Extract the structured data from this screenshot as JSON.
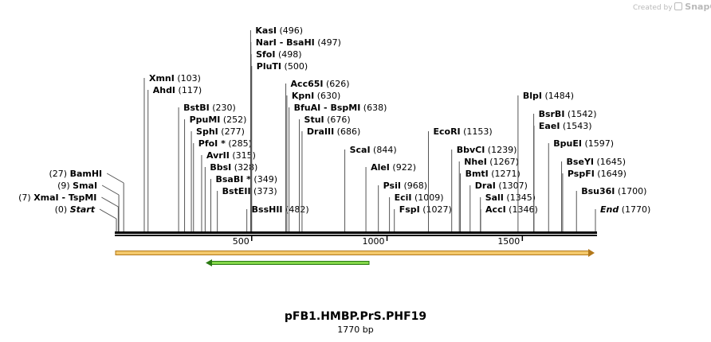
{
  "credit": {
    "prefix": "Created by",
    "brand": "SnapGene"
  },
  "map_title": "pFB1.HMBP.PrS.PHF19",
  "map_length": "1770 bp",
  "colors": {
    "feature_orange": "#f3c86b",
    "feature_orange_edge": "#b3781a",
    "feature_green": "#84d74a",
    "feature_green_edge": "#2a7a12",
    "line": "#000000",
    "leader": "#555555"
  },
  "ticks": [
    {
      "pos": 500,
      "label": "500"
    },
    {
      "pos": 1000,
      "label": "1000"
    },
    {
      "pos": 1500,
      "label": "1500"
    }
  ],
  "sites": [
    {
      "name": "Start",
      "pos": 0,
      "num": "(0)",
      "side": "left",
      "italic": true
    },
    {
      "name": "XmaI  -  TspMI",
      "pos": 7,
      "num": "(7)",
      "side": "left"
    },
    {
      "name": "SmaI",
      "pos": 9,
      "num": "(9)",
      "side": "left"
    },
    {
      "name": "BamHI",
      "pos": 27,
      "num": "(27)",
      "side": "left"
    },
    {
      "name": "XmnI",
      "pos": 103,
      "num": "(103)",
      "side": "right"
    },
    {
      "name": "AhdI",
      "pos": 117,
      "num": "(117)",
      "side": "right"
    },
    {
      "name": "BstBI",
      "pos": 230,
      "num": "(230)",
      "side": "right"
    },
    {
      "name": "PpuMI",
      "pos": 252,
      "num": "(252)",
      "side": "right"
    },
    {
      "name": "SphI",
      "pos": 277,
      "num": "(277)",
      "side": "right"
    },
    {
      "name": "PfoI *",
      "pos": 285,
      "num": "(285)",
      "side": "right"
    },
    {
      "name": "AvrII",
      "pos": 315,
      "num": "(315)",
      "side": "right"
    },
    {
      "name": "BbsI",
      "pos": 328,
      "num": "(328)",
      "side": "right"
    },
    {
      "name": "BsaBI *",
      "pos": 349,
      "num": "(349)",
      "side": "right"
    },
    {
      "name": "BstEII",
      "pos": 373,
      "num": "(373)",
      "side": "right"
    },
    {
      "name": "BssHII",
      "pos": 482,
      "num": "(482)",
      "side": "right"
    },
    {
      "name": "KasI",
      "pos": 496,
      "num": "(496)",
      "side": "right"
    },
    {
      "name": "NarI  -  BsaHI",
      "pos": 497,
      "num": "(497)",
      "side": "right"
    },
    {
      "name": "SfoI",
      "pos": 498,
      "num": "(498)",
      "side": "right"
    },
    {
      "name": "PluTI",
      "pos": 500,
      "num": "(500)",
      "side": "right"
    },
    {
      "name": "Acc65I",
      "pos": 626,
      "num": "(626)",
      "side": "right"
    },
    {
      "name": "KpnI",
      "pos": 630,
      "num": "(630)",
      "side": "right"
    },
    {
      "name": "BfuAI  -  BspMI",
      "pos": 638,
      "num": "(638)",
      "side": "right"
    },
    {
      "name": "StuI",
      "pos": 676,
      "num": "(676)",
      "side": "right"
    },
    {
      "name": "DraIII",
      "pos": 686,
      "num": "(686)",
      "side": "right"
    },
    {
      "name": "ScaI",
      "pos": 844,
      "num": "(844)",
      "side": "right"
    },
    {
      "name": "AleI",
      "pos": 922,
      "num": "(922)",
      "side": "right"
    },
    {
      "name": "PsiI",
      "pos": 968,
      "num": "(968)",
      "side": "right"
    },
    {
      "name": "EciI",
      "pos": 1009,
      "num": "(1009)",
      "side": "right"
    },
    {
      "name": "FspI",
      "pos": 1027,
      "num": "(1027)",
      "side": "right"
    },
    {
      "name": "EcoRI",
      "pos": 1153,
      "num": "(1153)",
      "side": "right"
    },
    {
      "name": "BbvCI",
      "pos": 1239,
      "num": "(1239)",
      "side": "right"
    },
    {
      "name": "NheI",
      "pos": 1267,
      "num": "(1267)",
      "side": "right"
    },
    {
      "name": "BmtI",
      "pos": 1271,
      "num": "(1271)",
      "side": "right"
    },
    {
      "name": "DraI",
      "pos": 1307,
      "num": "(1307)",
      "side": "right"
    },
    {
      "name": "SalI",
      "pos": 1345,
      "num": "(1345)",
      "side": "right"
    },
    {
      "name": "AccI",
      "pos": 1346,
      "num": "(1346)",
      "side": "right"
    },
    {
      "name": "BlpI",
      "pos": 1484,
      "num": "(1484)",
      "side": "right"
    },
    {
      "name": "BsrBI",
      "pos": 1542,
      "num": "(1542)",
      "side": "right"
    },
    {
      "name": "EaeI",
      "pos": 1543,
      "num": "(1543)",
      "side": "right"
    },
    {
      "name": "BpuEI",
      "pos": 1597,
      "num": "(1597)",
      "side": "right"
    },
    {
      "name": "BseYI",
      "pos": 1645,
      "num": "(1645)",
      "side": "right"
    },
    {
      "name": "PspFI",
      "pos": 1649,
      "num": "(1649)",
      "side": "right"
    },
    {
      "name": "Bsu36I",
      "pos": 1700,
      "num": "(1700)",
      "side": "right"
    },
    {
      "name": "End",
      "pos": 1770,
      "num": "(1770)",
      "side": "right",
      "italic": true
    }
  ]
}
